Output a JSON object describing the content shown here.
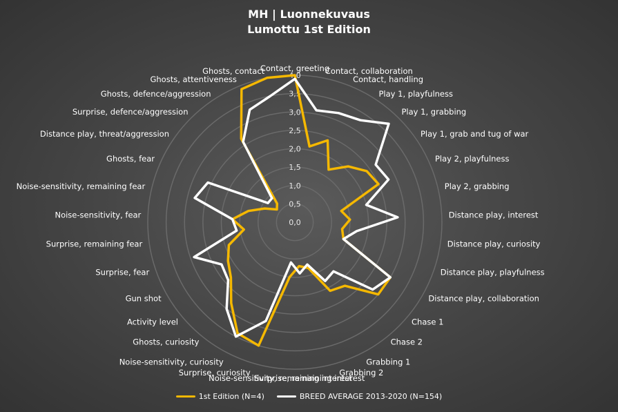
{
  "header": {
    "title": "MH | Luonnekuvaus",
    "subtitle": "Lumottu 1st Edition"
  },
  "colors": {
    "series1": "#f5b800",
    "series2": "#ffffff",
    "grid": "#6a6a6a"
  },
  "chart_data": {
    "type": "radar",
    "title": "MH | Luonnekuvaus",
    "subtitle": "Lumottu 1st Edition",
    "rlim": [
      0,
      4
    ],
    "ticks": [
      "0,0",
      "0,5",
      "1,0",
      "1,5",
      "2,0",
      "2,5",
      "3,0",
      "3,5",
      "4,0"
    ],
    "grid": true,
    "legend_position": "bottom",
    "categories": [
      "Contact, greeting",
      "Contact, collaboration",
      "Contact, handling",
      "Play 1, playfulness",
      "Play 1, grabbing",
      "Play 1, grab and tug of war",
      "Play 2, playfulness",
      "Play 2, grabbing",
      "Distance play, interest",
      "Distance play, curiosity",
      "Distance play, playfulness",
      "Distance play, collaboration",
      "Chase 1",
      "Chase 2",
      "Grabbing 1",
      "Grabbing 2",
      "Surprise, remaining interest",
      "Noise-sensitivity, remaining interest",
      "Surprise, curiosity",
      "Noise-sensitivity, curiosity",
      "Ghosts, curiosity",
      "Activity level",
      "Gun shot",
      "Surprise, fear",
      "Surprise, remaining fear",
      "Noise-sensitivity, fear",
      "Noise-sensitivity, remaining fear",
      "Ghosts, fear",
      "Distance play, threat/aggression",
      "Surprise, defence/aggression",
      "Ghosts, defence/aggression",
      "Ghosts, attentiveness",
      "Ghosts, contact"
    ],
    "series": [
      {
        "name": "1st Edition (N=4)",
        "values": [
          4.0,
          2.1,
          2.4,
          1.7,
          2.1,
          2.4,
          2.5,
          1.3,
          1.5,
          1.3,
          1.4,
          3.0,
          3.0,
          2.2,
          2.1,
          1.3,
          1.2,
          1.5,
          3.5,
          3.4,
          2.8,
          2.3,
          2.1,
          1.9,
          1.4,
          1.7,
          1.3,
          0.9,
          0.6,
          0.7,
          2.7,
          3.9,
          4.0
        ]
      },
      {
        "name": "BREED AVERAGE 2013-2020 (N=154)",
        "values": [
          3.9,
          3.1,
          3.2,
          3.3,
          3.7,
          2.7,
          2.8,
          2.0,
          2.8,
          1.7,
          1.4,
          3.0,
          2.8,
          1.7,
          1.8,
          1.2,
          1.4,
          1.1,
          2.8,
          3.5,
          3.0,
          2.4,
          2.3,
          2.9,
          1.6,
          1.7,
          2.8,
          2.6,
          0.9,
          0.9,
          2.6,
          3.3,
          3.5
        ]
      }
    ]
  }
}
